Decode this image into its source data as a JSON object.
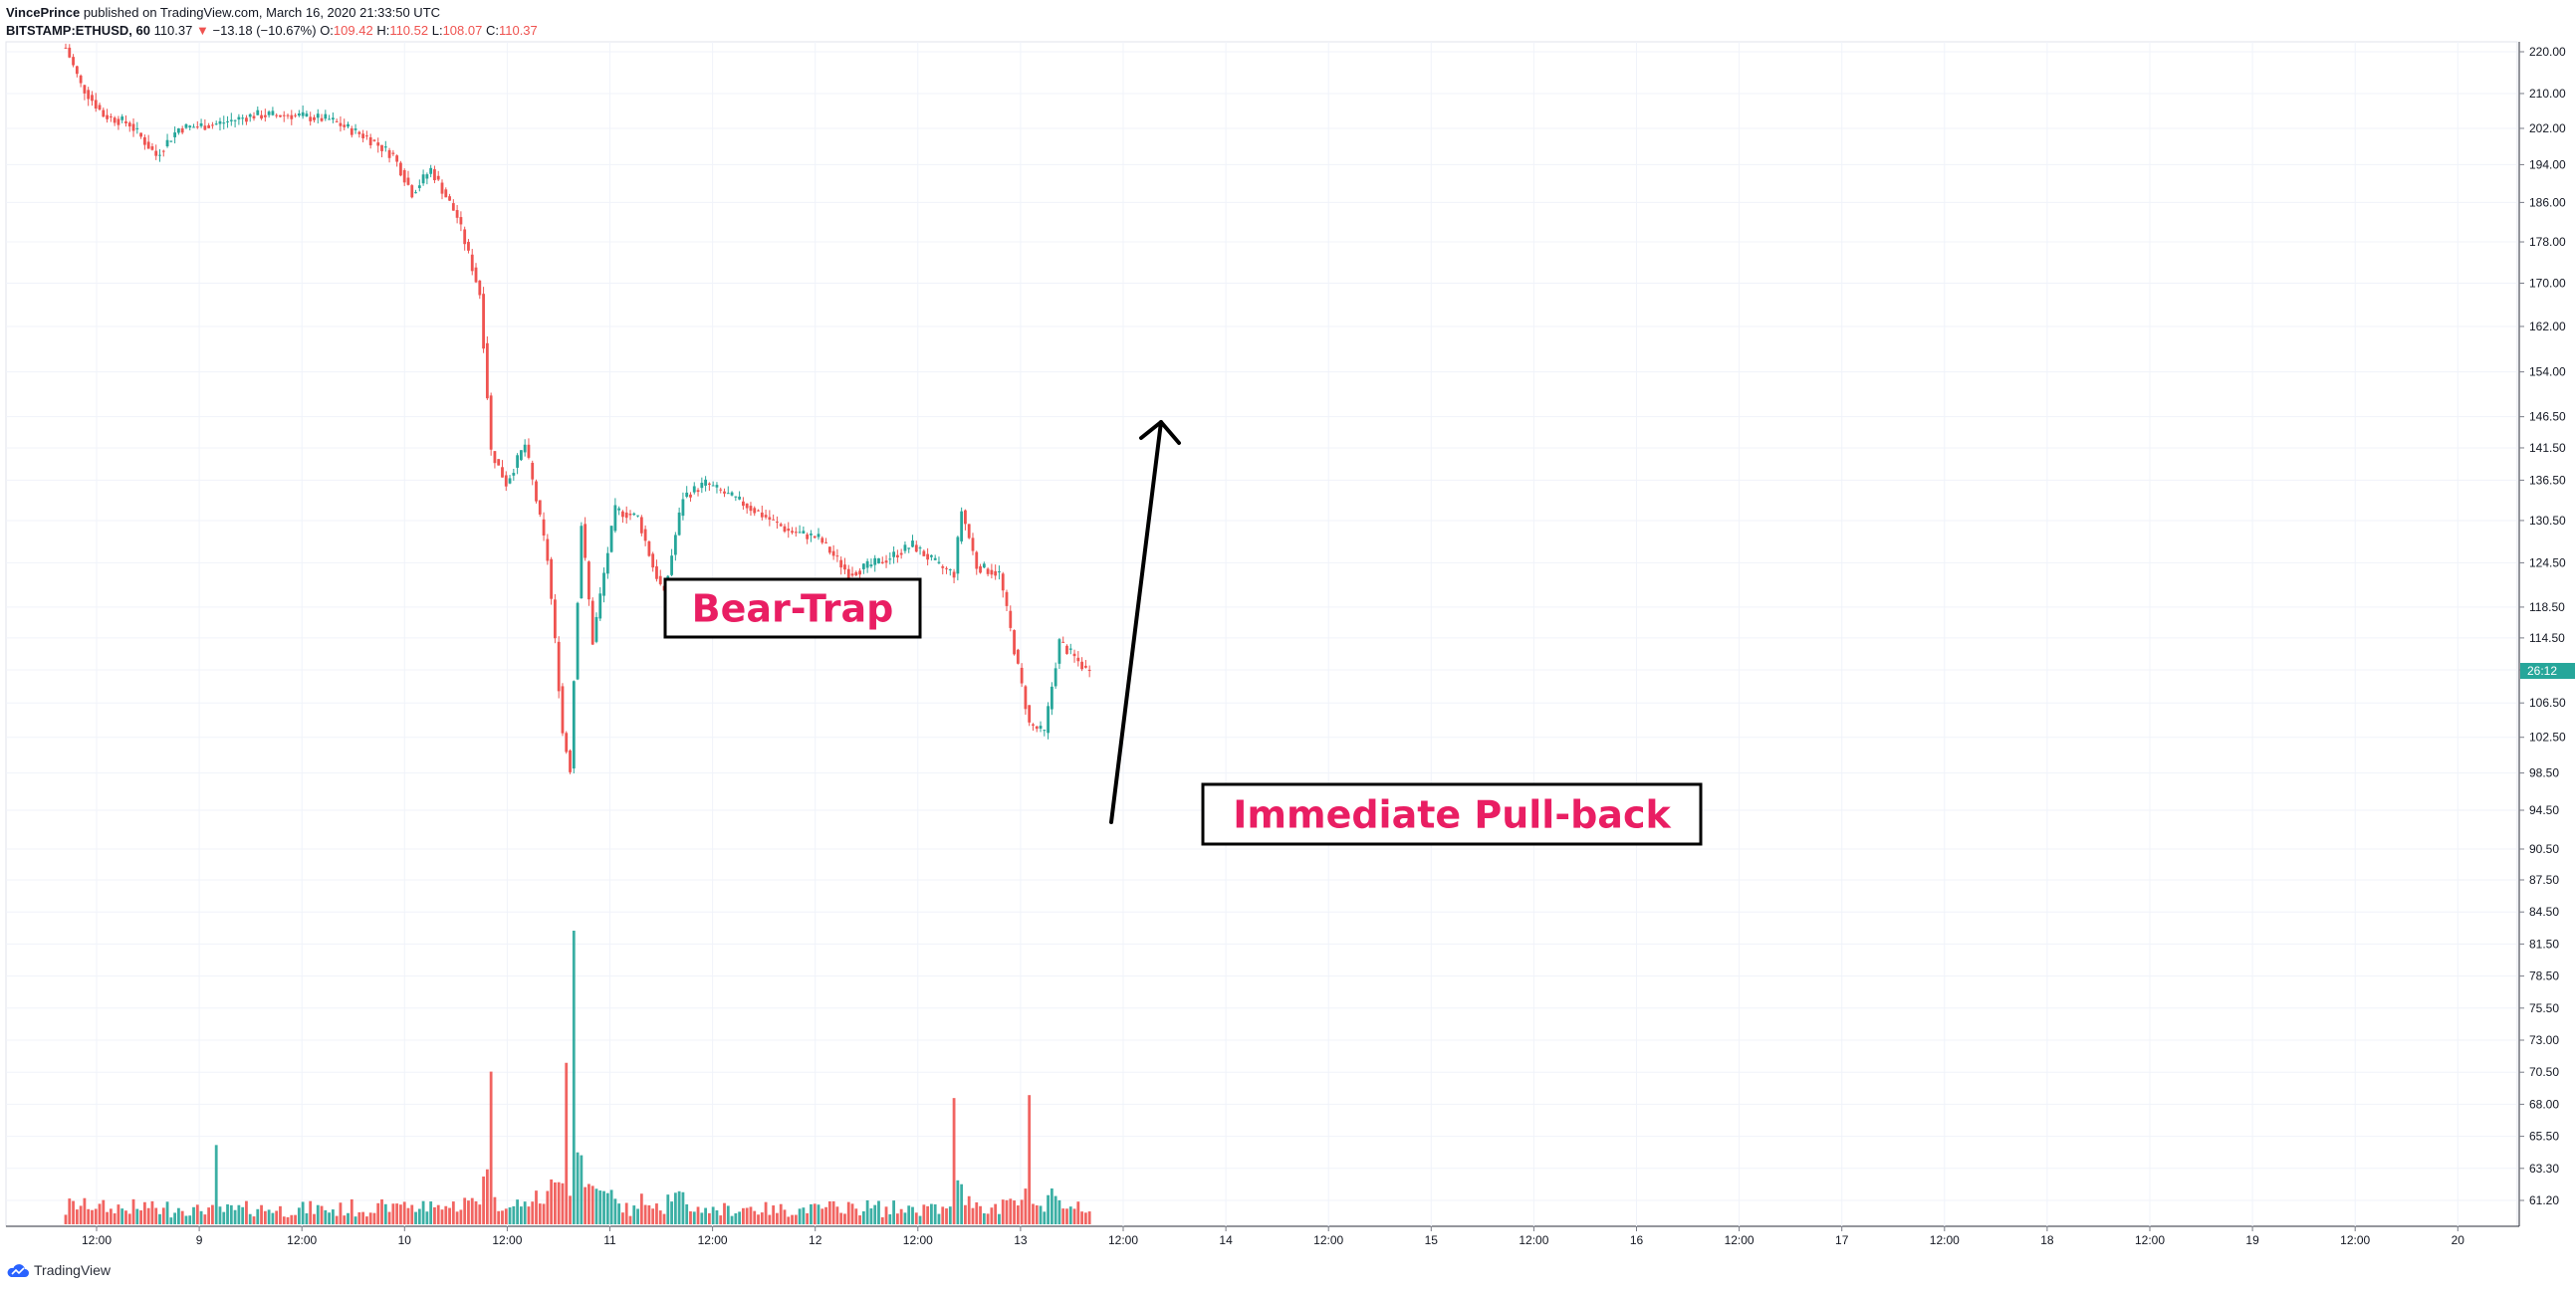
{
  "header": {
    "author": "VincePrince",
    "published_text": "published on TradingView.com, March 16, 2020 21:33:50 UTC",
    "symbol": "BITSTAMP:ETHUSD, 60",
    "last_price": "110.37",
    "change_arrow": "▼",
    "change": "−13.18 (−10.67%)",
    "o_label": "O:",
    "o_val": "109.42",
    "h_label": "H:",
    "h_val": "110.52",
    "l_label": "L:",
    "l_val": "108.07",
    "c_label": "C:",
    "c_val": "110.37"
  },
  "footer": {
    "brand": "TradingView"
  },
  "colors": {
    "up": "#26a69a",
    "down": "#ef5350",
    "annotation_text": "#e91e63",
    "grid": "#f0f3fa",
    "axis": "#787b86"
  },
  "countdown_label": {
    "text": "26:12",
    "price": 110.37
  },
  "annotations": [
    {
      "id": "bear-trap",
      "text": "Bear-Trap"
    },
    {
      "id": "pullback",
      "text": "Immediate Pull-back"
    }
  ],
  "chart_data": {
    "type": "candlestick",
    "symbol": "BITSTAMP:ETHUSD",
    "interval": "60",
    "y_ticks": [
      220.0,
      210.0,
      202.0,
      194.0,
      186.0,
      178.0,
      170.0,
      162.0,
      154.0,
      146.5,
      141.5,
      136.5,
      130.5,
      124.5,
      118.5,
      114.5,
      110.5,
      106.5,
      102.5,
      98.5,
      94.5,
      90.5,
      87.5,
      84.5,
      81.5,
      78.5,
      75.5,
      73.0,
      70.5,
      68.0,
      65.5,
      63.3,
      61.2
    ],
    "x_ticks": [
      "12:00",
      "9",
      "12:00",
      "10",
      "12:00",
      "11",
      "12:00",
      "12",
      "12:00",
      "13",
      "12:00",
      "14",
      "12:00",
      "15",
      "12:00",
      "16",
      "12:00",
      "17",
      "12:00",
      "18",
      "12:00",
      "19",
      "12:00",
      "20"
    ],
    "log_scale": true,
    "grid": true,
    "price_keypoints": [
      {
        "i": 0,
        "price": 221
      },
      {
        "i": 4,
        "price": 212
      },
      {
        "i": 10,
        "price": 205
      },
      {
        "i": 17,
        "price": 203
      },
      {
        "i": 24,
        "price": 196
      },
      {
        "i": 30,
        "price": 202
      },
      {
        "i": 40,
        "price": 203
      },
      {
        "i": 50,
        "price": 205
      },
      {
        "i": 60,
        "price": 205
      },
      {
        "i": 70,
        "price": 204
      },
      {
        "i": 80,
        "price": 200
      },
      {
        "i": 87,
        "price": 196
      },
      {
        "i": 92,
        "price": 188
      },
      {
        "i": 97,
        "price": 193
      },
      {
        "i": 104,
        "price": 183
      },
      {
        "i": 110,
        "price": 168
      },
      {
        "i": 113,
        "price": 141
      },
      {
        "i": 117,
        "price": 136
      },
      {
        "i": 122,
        "price": 142
      },
      {
        "i": 128,
        "price": 125
      },
      {
        "i": 132,
        "price": 103
      },
      {
        "i": 134,
        "price": 99
      },
      {
        "i": 137,
        "price": 130
      },
      {
        "i": 140,
        "price": 114
      },
      {
        "i": 146,
        "price": 132
      },
      {
        "i": 152,
        "price": 131
      },
      {
        "i": 156,
        "price": 124
      },
      {
        "i": 159,
        "price": 120
      },
      {
        "i": 164,
        "price": 134
      },
      {
        "i": 170,
        "price": 136
      },
      {
        "i": 180,
        "price": 133
      },
      {
        "i": 192,
        "price": 129
      },
      {
        "i": 200,
        "price": 128
      },
      {
        "i": 208,
        "price": 123
      },
      {
        "i": 218,
        "price": 125
      },
      {
        "i": 225,
        "price": 127
      },
      {
        "i": 232,
        "price": 124
      },
      {
        "i": 236,
        "price": 123
      },
      {
        "i": 238,
        "price": 132
      },
      {
        "i": 242,
        "price": 124
      },
      {
        "i": 248,
        "price": 123
      },
      {
        "i": 252,
        "price": 113
      },
      {
        "i": 256,
        "price": 104
      },
      {
        "i": 260,
        "price": 103
      },
      {
        "i": 264,
        "price": 114
      },
      {
        "i": 268,
        "price": 112
      },
      {
        "i": 272,
        "price": 110
      }
    ],
    "volume_spikes": [
      {
        "i": 40,
        "v": 0.27
      },
      {
        "i": 113,
        "v": 0.52
      },
      {
        "i": 133,
        "v": 0.55
      },
      {
        "i": 135,
        "v": 1.0
      },
      {
        "i": 236,
        "v": 0.43
      },
      {
        "i": 256,
        "v": 0.44
      }
    ],
    "last_close": 110.37
  }
}
